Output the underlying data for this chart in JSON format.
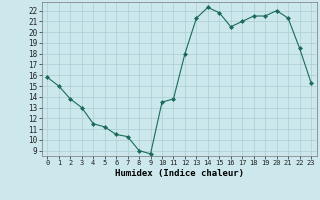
{
  "x": [
    0,
    1,
    2,
    3,
    4,
    5,
    6,
    7,
    8,
    9,
    10,
    11,
    12,
    13,
    14,
    15,
    16,
    17,
    18,
    19,
    20,
    21,
    22,
    23
  ],
  "y": [
    15.8,
    15.0,
    13.8,
    13.0,
    11.5,
    11.2,
    10.5,
    10.3,
    9.0,
    8.7,
    13.5,
    13.8,
    18.0,
    21.3,
    22.3,
    21.8,
    20.5,
    21.0,
    21.5,
    21.5,
    22.0,
    21.3,
    18.5,
    15.3
  ],
  "line_color": "#1a6b5a",
  "marker": "D",
  "marker_size": 2.0,
  "bg_color": "#cce8ec",
  "grid_color": "#aacdd4",
  "xlabel": "Humidex (Indice chaleur)",
  "ylabel_ticks": [
    9,
    10,
    11,
    12,
    13,
    14,
    15,
    16,
    17,
    18,
    19,
    20,
    21,
    22
  ],
  "ylim": [
    8.5,
    22.8
  ],
  "xlim": [
    -0.5,
    23.5
  ]
}
